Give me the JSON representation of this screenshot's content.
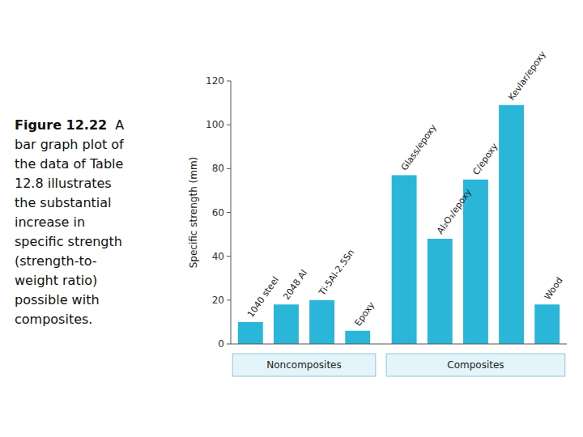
{
  "chart_data": {
    "type": "bar",
    "categories": [
      "1040 steel",
      "2048 Al",
      "Ti-5Al-2.5Sn",
      "Epoxy",
      "Glass/epoxy",
      "Al₂O₃/epoxy",
      "C/epoxy",
      "Kevlar/epoxy",
      "Wood"
    ],
    "values": [
      10,
      18,
      20,
      6,
      77,
      48,
      75,
      109,
      18
    ],
    "color": "#29b6d8",
    "ylabel": "Specific strength (mm)",
    "ylim": [
      0,
      120
    ],
    "yticks": [
      0,
      20,
      40,
      60,
      80,
      100,
      120
    ],
    "groups": [
      {
        "label": "Noncomposites",
        "categories": [
          "1040 steel",
          "2048 Al",
          "Ti-5Al-2.5Sn",
          "Epoxy"
        ]
      },
      {
        "label": "Composites",
        "categories": [
          "Glass/epoxy",
          "Al₂O₃/epoxy",
          "C/epoxy",
          "Kevlar/epoxy",
          "Wood"
        ]
      }
    ],
    "caption": {
      "bold": "Figure 12.22",
      "lines": [
        "A",
        "bar graph plot of",
        "the data of Table",
        "12.8 illustrates",
        "the substantial",
        "increase in",
        "specific strength",
        "(strength-to-",
        "weight ratio)",
        "possible with",
        "composites."
      ]
    },
    "grid": false
  }
}
